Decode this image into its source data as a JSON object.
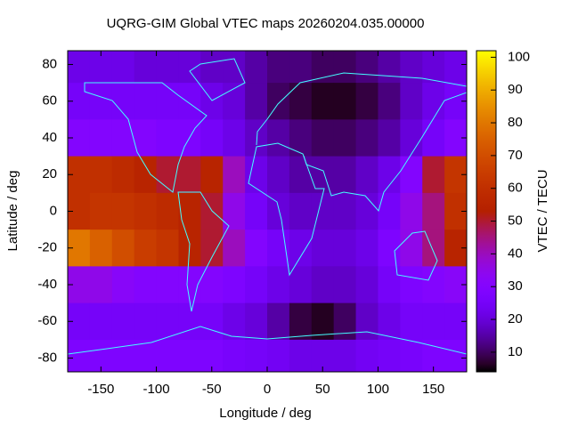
{
  "chart_data": {
    "type": "heatmap",
    "title": "UQRG-GIM Global VTEC maps 20260204.035.00000",
    "x_label": "Longitude / deg",
    "y_label": "Latitude / deg",
    "colorbar_label": "VTEC / TECU",
    "x_bins": [
      -180,
      -160,
      -140,
      -120,
      -100,
      -80,
      -60,
      -40,
      -20,
      0,
      20,
      40,
      60,
      80,
      100,
      120,
      140,
      160,
      180
    ],
    "y_bins": [
      87.5,
      70,
      50,
      30,
      10,
      -10,
      -30,
      -50,
      -70,
      -87.5
    ],
    "z": [
      [
        22,
        22,
        22,
        20,
        20,
        20,
        18,
        18,
        15,
        12,
        12,
        10,
        10,
        12,
        15,
        18,
        20,
        22
      ],
      [
        25,
        25,
        25,
        25,
        25,
        25,
        22,
        20,
        15,
        10,
        8,
        6,
        6,
        8,
        12,
        18,
        22,
        25
      ],
      [
        30,
        30,
        30,
        30,
        28,
        28,
        25,
        22,
        18,
        15,
        12,
        10,
        10,
        12,
        15,
        20,
        25,
        30
      ],
      [
        60,
        60,
        58,
        55,
        50,
        50,
        55,
        40,
        22,
        18,
        15,
        15,
        15,
        18,
        22,
        30,
        50,
        62
      ],
      [
        60,
        62,
        62,
        60,
        58,
        55,
        50,
        35,
        25,
        20,
        18,
        18,
        18,
        20,
        25,
        35,
        45,
        60
      ],
      [
        80,
        75,
        70,
        65,
        62,
        55,
        50,
        40,
        30,
        25,
        22,
        20,
        20,
        22,
        28,
        35,
        45,
        55
      ],
      [
        35,
        35,
        32,
        30,
        30,
        30,
        30,
        28,
        25,
        22,
        20,
        18,
        18,
        20,
        25,
        28,
        30,
        32
      ],
      [
        25,
        25,
        25,
        25,
        25,
        25,
        25,
        22,
        20,
        15,
        8,
        6,
        10,
        18,
        22,
        25,
        25,
        25
      ],
      [
        28,
        28,
        28,
        28,
        28,
        28,
        28,
        26,
        25,
        24,
        22,
        22,
        22,
        24,
        25,
        26,
        28,
        28
      ]
    ],
    "xlim": [
      -180,
      180
    ],
    "ylim": [
      -87.5,
      87.5
    ],
    "clim": [
      4,
      102
    ],
    "xticks": [
      -150,
      -100,
      -50,
      0,
      50,
      100,
      150
    ],
    "yticks": [
      -80,
      -60,
      -40,
      -20,
      0,
      20,
      40,
      60,
      80
    ],
    "cticks": [
      10,
      20,
      30,
      40,
      50,
      60,
      70,
      80,
      90,
      100
    ],
    "palette": "gnuplot-rgbformulae-7-5-15"
  }
}
